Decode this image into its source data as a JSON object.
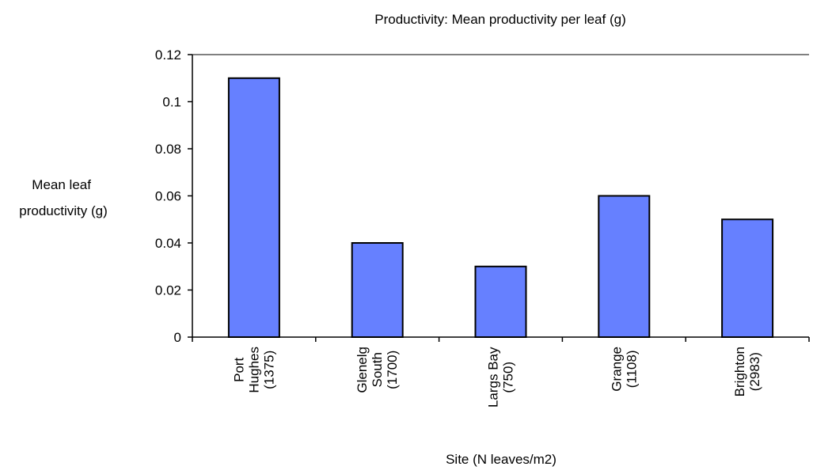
{
  "chart_data": {
    "type": "bar",
    "title": "Productivity: Mean productivity per leaf (g)",
    "xlabel": "Site (N leaves/m2)",
    "ylabel_lines": [
      "Mean leaf",
      "productivity (g)"
    ],
    "categories": [
      [
        "Port",
        "Hughes",
        "(1375)"
      ],
      [
        "Glenelg",
        "South",
        "(1700)"
      ],
      [
        "Largs Bay",
        "(750)"
      ],
      [
        "Grange",
        "(1108)"
      ],
      [
        "Brighton",
        "(2983)"
      ]
    ],
    "values": [
      0.11,
      0.04,
      0.03,
      0.06,
      0.05
    ],
    "ylim": [
      0,
      0.12
    ],
    "yticks": [
      "0",
      "0.02",
      "0.04",
      "0.06",
      "0.08",
      "0.1",
      "0.12"
    ],
    "ytick_values": [
      0,
      0.02,
      0.04,
      0.06,
      0.08,
      0.1,
      0.12
    ],
    "grid": false,
    "legend": "none",
    "colors": {
      "bar_fill": "#6680FF",
      "bar_stroke": "#000000",
      "axis": "#000000",
      "top_border": "#808080"
    }
  }
}
